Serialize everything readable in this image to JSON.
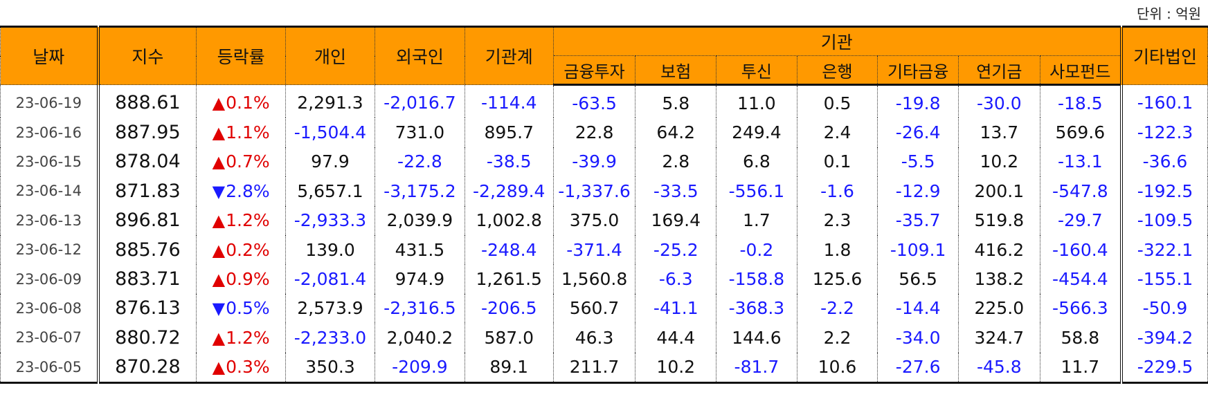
{
  "unit_label": "단위 : 억원",
  "headers": {
    "date": "날짜",
    "index": "지수",
    "change": "등락률",
    "individual": "개인",
    "foreign": "외국인",
    "institution_total": "기관계",
    "institution": "기관",
    "sub": [
      "금융투자",
      "보험",
      "투신",
      "은행",
      "기타금융",
      "연기금",
      "사모펀드"
    ],
    "other_corp": "기타법인"
  },
  "arrow_up": "▲",
  "arrow_down": "▼",
  "colors": {
    "header_bg": "#ff9900",
    "negative": "#1a1aff",
    "up": "#e00000",
    "down": "#1a1aff"
  },
  "rows": [
    {
      "date": "23-06-19",
      "index": "888.61",
      "dir": "up",
      "change": "0.1%",
      "vals": [
        "2,291.3",
        "-2,016.7",
        "-114.4",
        "-63.5",
        "5.8",
        "11.0",
        "0.5",
        "-19.8",
        "-30.0",
        "-18.5",
        "-160.1"
      ]
    },
    {
      "date": "23-06-16",
      "index": "887.95",
      "dir": "up",
      "change": "1.1%",
      "vals": [
        "-1,504.4",
        "731.0",
        "895.7",
        "22.8",
        "64.2",
        "249.4",
        "2.4",
        "-26.4",
        "13.7",
        "569.6",
        "-122.3"
      ]
    },
    {
      "date": "23-06-15",
      "index": "878.04",
      "dir": "up",
      "change": "0.7%",
      "vals": [
        "97.9",
        "-22.8",
        "-38.5",
        "-39.9",
        "2.8",
        "6.8",
        "0.1",
        "-5.5",
        "10.2",
        "-13.1",
        "-36.6"
      ]
    },
    {
      "date": "23-06-14",
      "index": "871.83",
      "dir": "down",
      "change": "2.8%",
      "vals": [
        "5,657.1",
        "-3,175.2",
        "-2,289.4",
        "-1,337.6",
        "-33.5",
        "-556.1",
        "-1.6",
        "-12.9",
        "200.1",
        "-547.8",
        "-192.5"
      ]
    },
    {
      "date": "23-06-13",
      "index": "896.81",
      "dir": "up",
      "change": "1.2%",
      "vals": [
        "-2,933.3",
        "2,039.9",
        "1,002.8",
        "375.0",
        "169.4",
        "1.7",
        "2.3",
        "-35.7",
        "519.8",
        "-29.7",
        "-109.5"
      ]
    },
    {
      "date": "23-06-12",
      "index": "885.76",
      "dir": "up",
      "change": "0.2%",
      "vals": [
        "139.0",
        "431.5",
        "-248.4",
        "-371.4",
        "-25.2",
        "-0.2",
        "1.8",
        "-109.1",
        "416.2",
        "-160.4",
        "-322.1"
      ]
    },
    {
      "date": "23-06-09",
      "index": "883.71",
      "dir": "up",
      "change": "0.9%",
      "vals": [
        "-2,081.4",
        "974.9",
        "1,261.5",
        "1,560.8",
        "-6.3",
        "-158.8",
        "125.6",
        "56.5",
        "138.2",
        "-454.4",
        "-155.1"
      ]
    },
    {
      "date": "23-06-08",
      "index": "876.13",
      "dir": "down",
      "change": "0.5%",
      "vals": [
        "2,573.9",
        "-2,316.5",
        "-206.5",
        "560.7",
        "-41.1",
        "-368.3",
        "-2.2",
        "-14.4",
        "225.0",
        "-566.3",
        "-50.9"
      ]
    },
    {
      "date": "23-06-07",
      "index": "880.72",
      "dir": "up",
      "change": "1.2%",
      "vals": [
        "-2,233.0",
        "2,040.2",
        "587.0",
        "46.3",
        "44.4",
        "144.6",
        "2.2",
        "-34.0",
        "324.7",
        "58.8",
        "-394.2"
      ]
    },
    {
      "date": "23-06-05",
      "index": "870.28",
      "dir": "up",
      "change": "0.3%",
      "vals": [
        "350.3",
        "-209.9",
        "89.1",
        "211.7",
        "10.2",
        "-81.7",
        "10.6",
        "-27.6",
        "-45.8",
        "11.7",
        "-229.5"
      ]
    }
  ]
}
